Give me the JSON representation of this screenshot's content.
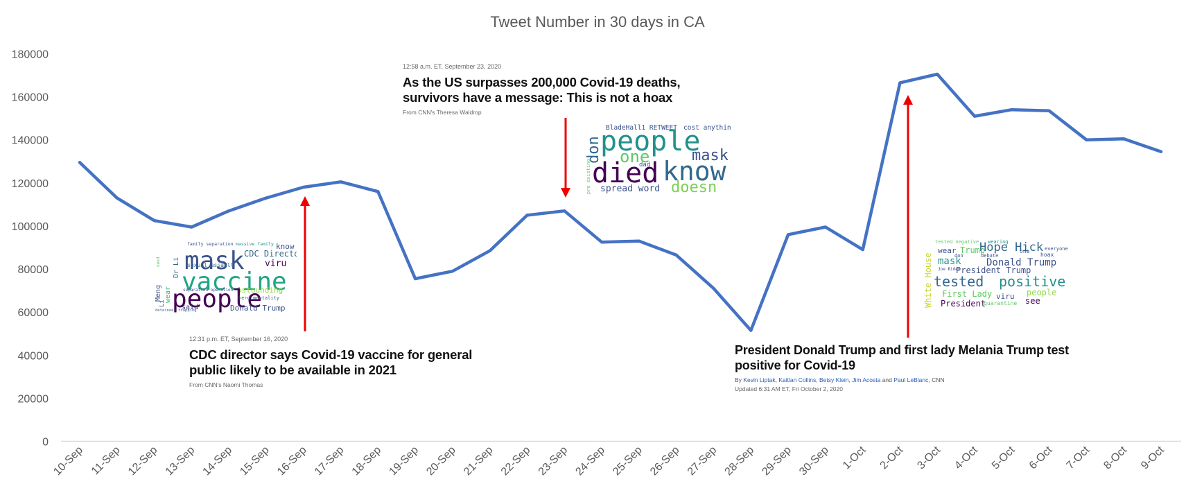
{
  "chart_data": {
    "type": "line",
    "title": "Tweet Number in 30 days in CA",
    "xlabel": "",
    "ylabel": "",
    "ylim": [
      0,
      180000
    ],
    "yticks": [
      "0",
      "20000",
      "40000",
      "60000",
      "80000",
      "100000",
      "120000",
      "140000",
      "160000",
      "180000"
    ],
    "grid": false,
    "line_color": "#4472C4",
    "categories": [
      "10-Sep",
      "11-Sep",
      "12-Sep",
      "13-Sep",
      "14-Sep",
      "15-Sep",
      "16-Sep",
      "17-Sep",
      "18-Sep",
      "19-Sep",
      "20-Sep",
      "21-Sep",
      "22-Sep",
      "23-Sep",
      "24-Sep",
      "25-Sep",
      "26-Sep",
      "27-Sep",
      "28-Sep",
      "29-Sep",
      "30-Sep",
      "1-Oct",
      "2-Oct",
      "3-Oct",
      "4-Oct",
      "5-Oct",
      "6-Oct",
      "7-Oct",
      "8-Oct",
      "9-Oct"
    ],
    "values": [
      129500,
      113000,
      102500,
      99500,
      107000,
      113000,
      118000,
      120500,
      116000,
      75500,
      79000,
      88500,
      105000,
      107000,
      92500,
      93000,
      86500,
      71000,
      51500,
      96000,
      99500,
      89000,
      166500,
      170500,
      151000,
      154000,
      153500,
      140000,
      140500,
      134500
    ]
  },
  "annotations": {
    "arrow_color": "#ee0000",
    "cnn_sep16": {
      "timestamp": "12:31 p.m. ET, September 16, 2020",
      "headline_line1": "CDC director says Covid-19 vaccine for general",
      "headline_line2": "public likely to be available in 2021",
      "source": "From CNN's Naomi Thomas"
    },
    "cnn_sep23": {
      "timestamp": "12:58 a.m. ET, September 23, 2020",
      "headline_line1": "As the US surpasses 200,000 Covid-19 deaths,",
      "headline_line2": "survivors have a message: This is not a hoax",
      "source": "From CNN's Theresa Waldrop"
    },
    "cnn_oct2": {
      "headline_line1": "President Donald Trump and first lady Melania Trump test",
      "headline_line2": "positive for Covid-19",
      "by": "By",
      "authors": [
        "Kevin Liptak,",
        "Kaitlan Collins,",
        "Betsy Klein,",
        "Jim Acosta",
        "and",
        "Paul LeBlanc,",
        "CNN"
      ],
      "updated": "Updated 6:31 AM ET, Fri October 2, 2020"
    }
  },
  "wordclouds": {
    "cloud1": [
      "mask",
      "vaccine",
      "people",
      "CDC Director",
      "viru",
      "know",
      "sexual assault",
      "Donald Trump",
      "astounding",
      "said",
      "wear",
      "need",
      "Meng",
      "Li",
      "family separation",
      "massive family",
      "herd mentality",
      "separation operation",
      "detainees trapping",
      "Dr Li"
    ],
    "cloud2": [
      "people",
      "died",
      "know",
      "mask",
      "one",
      "doesn",
      "spread word",
      "don",
      "BladeHall1 RETWEET",
      "cost anything",
      "dad",
      "pre existing"
    ],
    "cloud3": [
      "Hope Hick",
      "tested",
      "positive",
      "Donald Trump",
      "President Trump",
      "First Lady",
      "White House",
      "mask",
      "wear",
      "Trump",
      "people",
      "viru",
      "see",
      "President",
      "Joe Biden",
      "tested negative",
      "wearing",
      "debate",
      "hoax",
      "quarantine",
      "everyone",
      "one",
      "don"
    ]
  }
}
